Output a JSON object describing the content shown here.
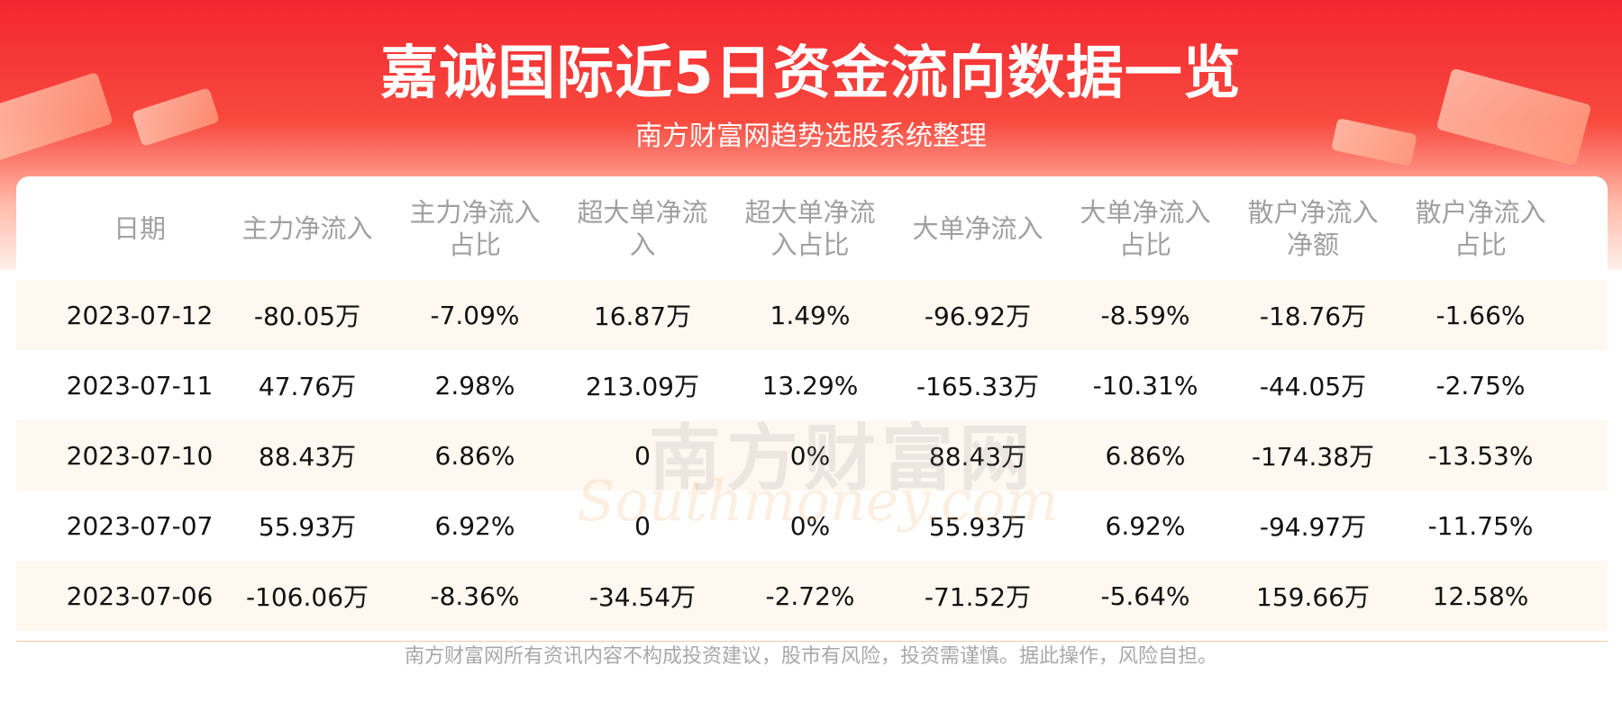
{
  "header": {
    "title": "嘉诚国际近5日资金流向数据一览",
    "subtitle": "南方财富网趋势选股系统整理"
  },
  "table": {
    "headers": [
      "日期",
      "主力净流入",
      "主力净流入占比",
      "超大单净流入",
      "超大单净流入占比",
      "大单净流入",
      "大单净流入占比",
      "散户净流入净额",
      "散户净流入占比"
    ],
    "rows": [
      [
        "2023-07-12",
        "-80.05万",
        "-7.09%",
        "16.87万",
        "1.49%",
        "-96.92万",
        "-8.59%",
        "-18.76万",
        "-1.66%"
      ],
      [
        "2023-07-11",
        "47.76万",
        "2.98%",
        "213.09万",
        "13.29%",
        "-165.33万",
        "-10.31%",
        "-44.05万",
        "-2.75%"
      ],
      [
        "2023-07-10",
        "88.43万",
        "6.86%",
        "0",
        "0%",
        "88.43万",
        "6.86%",
        "-174.38万",
        "-13.53%"
      ],
      [
        "2023-07-07",
        "55.93万",
        "6.92%",
        "0",
        "0%",
        "55.93万",
        "6.92%",
        "-94.97万",
        "-11.75%"
      ],
      [
        "2023-07-06",
        "-106.06万",
        "-8.36%",
        "-34.54万",
        "-2.72%",
        "-71.52万",
        "-5.64%",
        "159.66万",
        "12.58%"
      ]
    ]
  },
  "watermark": {
    "name": "南方财富网",
    "site": "Southmoney.com"
  },
  "footer": "南方财富网所有资讯内容不构成投资建议，股市有风险，投资需谨慎。据此操作，风险自担。"
}
